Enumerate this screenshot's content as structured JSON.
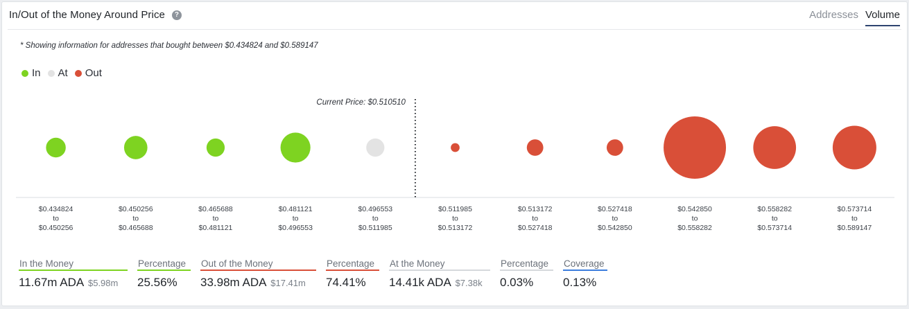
{
  "header": {
    "title": "In/Out of the Money Around Price",
    "help_icon": "?",
    "tabs": [
      "Addresses",
      "Volume"
    ],
    "active_tab": "Volume"
  },
  "note": "* Showing information for addresses that bought between $0.434824 and $0.589147",
  "legend": [
    {
      "label": "In",
      "color": "#7ed321"
    },
    {
      "label": "At",
      "color": "#e3e3e3"
    },
    {
      "label": "Out",
      "color": "#d94f38"
    }
  ],
  "chart_data": {
    "type": "bubble",
    "title": "In/Out of the Money Around Price",
    "current_price_label": "Current Price: $0.510510",
    "current_price": 0.51051,
    "colors": {
      "In": "#7ed321",
      "At": "#e3e3e3",
      "Out": "#d94f38"
    },
    "buckets": [
      {
        "from": "$0.434824",
        "to_word": "to",
        "to": "$0.450256",
        "status": "In",
        "relative_size": 0.1
      },
      {
        "from": "$0.450256",
        "to_word": "to",
        "to": "$0.465688",
        "status": "In",
        "relative_size": 0.14
      },
      {
        "from": "$0.465688",
        "to_word": "to",
        "to": "$0.481121",
        "status": "In",
        "relative_size": 0.085
      },
      {
        "from": "$0.481121",
        "to_word": "to",
        "to": "$0.496553",
        "status": "In",
        "relative_size": 0.23
      },
      {
        "from": "$0.496553",
        "to_word": "to",
        "to": "$0.511985",
        "status": "At",
        "relative_size": 0.085
      },
      {
        "from": "$0.511985",
        "to_word": "to",
        "to": "$0.513172",
        "status": "Out",
        "relative_size": 0.02
      },
      {
        "from": "$0.513172",
        "to_word": "to",
        "to": "$0.527418",
        "status": "Out",
        "relative_size": 0.07
      },
      {
        "from": "$0.527418",
        "to_word": "to",
        "to": "$0.542850",
        "status": "Out",
        "relative_size": 0.07
      },
      {
        "from": "$0.542850",
        "to_word": "to",
        "to": "$0.558282",
        "status": "Out",
        "relative_size": 1.0
      },
      {
        "from": "$0.558282",
        "to_word": "to",
        "to": "$0.573714",
        "status": "Out",
        "relative_size": 0.47
      },
      {
        "from": "$0.573714",
        "to_word": "to",
        "to": "$0.589147",
        "status": "Out",
        "relative_size": 0.49
      }
    ]
  },
  "stats": [
    {
      "label": "In the Money",
      "value": "11.67m ADA",
      "sub": "$5.98m",
      "accent": "#7ed321"
    },
    {
      "label": "Percentage",
      "value": "25.56%",
      "sub": "",
      "accent": "#7ed321"
    },
    {
      "label": "Out of the Money",
      "value": "33.98m ADA",
      "sub": "$17.41m",
      "accent": "#d94f38"
    },
    {
      "label": "Percentage",
      "value": "74.41%",
      "sub": "",
      "accent": "#d94f38"
    },
    {
      "label": "At the Money",
      "value": "14.41k ADA",
      "sub": "$7.38k",
      "accent": "#d5d8dc"
    },
    {
      "label": "Percentage",
      "value": "0.03%",
      "sub": "",
      "accent": "#d5d8dc"
    },
    {
      "label": "Coverage",
      "value": "0.13%",
      "sub": "",
      "accent": "#3b7ddd"
    }
  ]
}
